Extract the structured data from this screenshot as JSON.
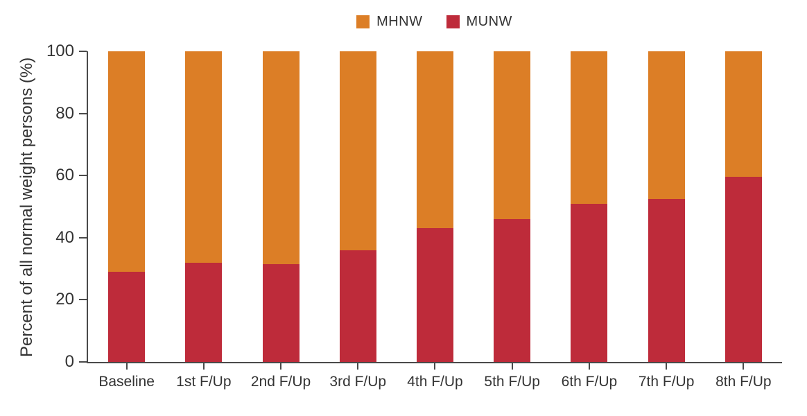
{
  "chart_data": {
    "type": "bar",
    "stacked": true,
    "title": "",
    "categories": [
      "Baseline",
      "1st F/Up",
      "2nd F/Up",
      "3rd F/Up",
      "4th F/Up",
      "5th F/Up",
      "6th F/Up",
      "7th F/Up",
      "8th F/Up"
    ],
    "series": [
      {
        "name": "MHNW",
        "color": "#DC7E26",
        "values": [
          71,
          68,
          68.5,
          64,
          57,
          54,
          49,
          47.5,
          40.5
        ]
      },
      {
        "name": "MUNW",
        "color": "#BE2B3A",
        "values": [
          29,
          32,
          31.5,
          36,
          43,
          46,
          51,
          52.5,
          59.5
        ]
      }
    ],
    "stack_order_bottom_to_top": [
      "MUNW",
      "MHNW"
    ],
    "xlabel": "",
    "ylabel": "Percent of all normal weight persons (%)",
    "ylim": [
      0,
      100
    ],
    "yticks": [
      0,
      20,
      40,
      60,
      80,
      100
    ],
    "grid": false,
    "legend_position": "top-center"
  },
  "styles": {
    "axis_color": "#4A4A4A",
    "text_color": "#333333",
    "background": "#FFFFFF"
  }
}
